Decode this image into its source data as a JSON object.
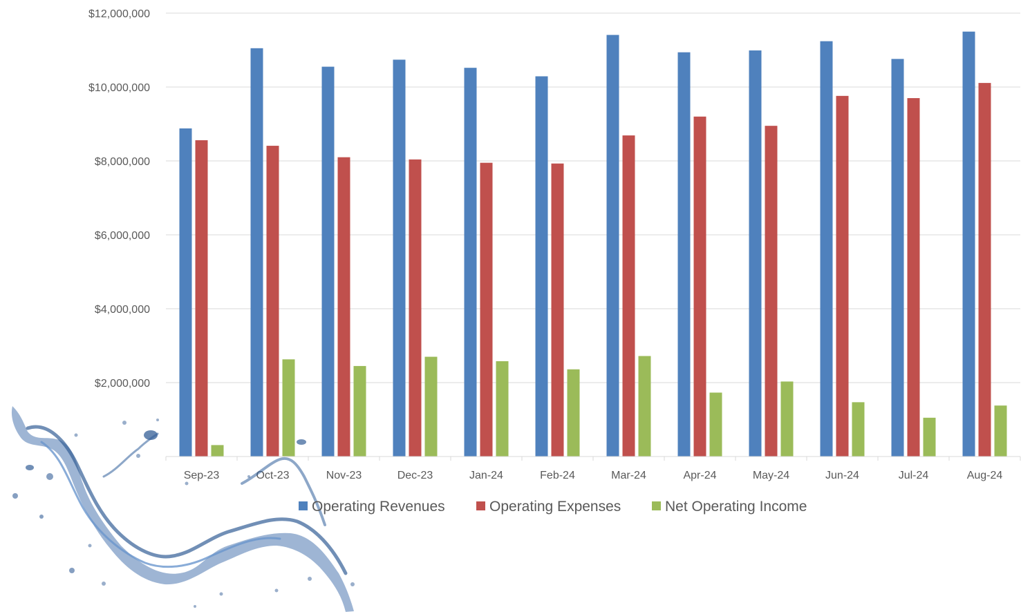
{
  "chart_data": {
    "type": "bar",
    "title": "",
    "xlabel": "",
    "ylabel": "",
    "ylim": [
      0,
      12000000
    ],
    "yticks": [
      0,
      2000000,
      4000000,
      6000000,
      8000000,
      10000000,
      12000000
    ],
    "ytick_labels": [
      "",
      "$2,000,000",
      "$4,000,000",
      "$6,000,000",
      "$8,000,000",
      "$10,000,000",
      "$12,000,000"
    ],
    "grid": true,
    "legend_position": "bottom",
    "categories": [
      "Sep-23",
      "Oct-23",
      "Nov-23",
      "Dec-23",
      "Jan-24",
      "Feb-24",
      "Mar-24",
      "Apr-24",
      "May-24",
      "Jun-24",
      "Jul-24",
      "Aug-24"
    ],
    "series": [
      {
        "name": "Operating Revenues",
        "color": "#4f81bd",
        "values": [
          8880000,
          11050000,
          10550000,
          10740000,
          10520000,
          10290000,
          11410000,
          10940000,
          10990000,
          11240000,
          10760000,
          11500000
        ]
      },
      {
        "name": "Operating Expenses",
        "color": "#c0504d",
        "values": [
          8560000,
          8410000,
          8100000,
          8040000,
          7950000,
          7930000,
          8690000,
          9200000,
          8950000,
          9760000,
          9700000,
          10110000
        ]
      },
      {
        "name": "Net Operating Income",
        "color": "#9bbb59",
        "values": [
          310000,
          2630000,
          2450000,
          2700000,
          2580000,
          2360000,
          2720000,
          1730000,
          2030000,
          1470000,
          1050000,
          1380000
        ]
      }
    ]
  },
  "decoration": {
    "icon": "water-splash-icon",
    "color": "#1f4e8c"
  }
}
